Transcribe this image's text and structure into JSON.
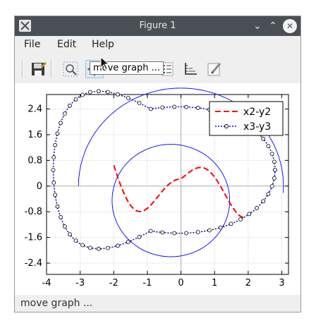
{
  "window": {
    "title": "Figure 1"
  },
  "menu": {
    "file": "File",
    "edit": "Edit",
    "help": "Help"
  },
  "toolbar": {
    "buttons": [
      {
        "icon": "save-icon"
      },
      {
        "icon": "zoom-icon"
      },
      {
        "icon": "move-graph-icon",
        "active": true
      },
      {
        "icon": "square-icon"
      },
      {
        "icon": "grid-icon"
      },
      {
        "icon": "legend-icon"
      },
      {
        "icon": "axes-icon"
      },
      {
        "icon": "edit-icon"
      }
    ],
    "tooltip": "move graph ..."
  },
  "status": "move graph ...",
  "chart_data": {
    "type": "line",
    "xlim": [
      -4,
      3.2
    ],
    "ylim": [
      -2.75,
      2.85
    ],
    "xticks": [
      "-4",
      "-3",
      "-2",
      "-1",
      "0",
      "1",
      "2",
      "3"
    ],
    "yticks": [
      "2.4",
      "1.6",
      "0.8",
      "0",
      "-0.8",
      "-1.6",
      "-2.4"
    ],
    "grid": true,
    "legend_position": "top-right",
    "series": [
      {
        "name": "x2-y2",
        "color": "#ff0000",
        "style": "dashed"
      },
      {
        "name": "x3-y3",
        "color": "#0000cc",
        "style": "dotted-circle-markers"
      }
    ],
    "unlabeled_curves": [
      {
        "type": "arc",
        "color": "#0000ff",
        "center": [
          0.0,
          0.0
        ],
        "radius": 3.05
      },
      {
        "type": "circle",
        "color": "#0000ff",
        "center": [
          -0.3,
          -0.45
        ],
        "radius": 1.75
      }
    ]
  }
}
